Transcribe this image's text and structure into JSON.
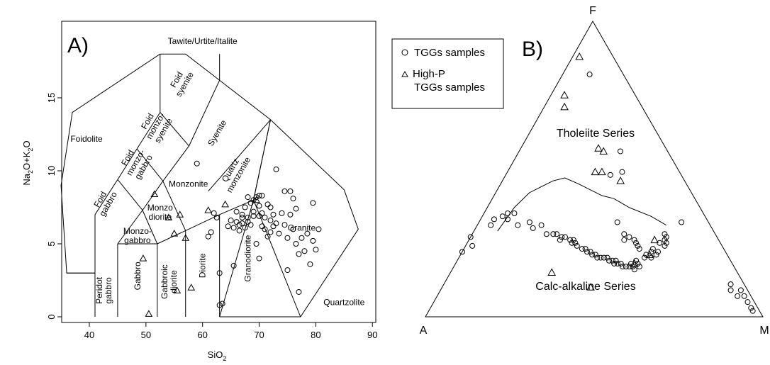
{
  "chart_data": [
    {
      "type": "scatter",
      "panel_label": "A)",
      "xlabel": {
        "base": "SiO",
        "sub": "2"
      },
      "ylabel": {
        "p1": "Na",
        "s1": "2",
        "p2": "O+K",
        "s2": "2",
        "p3": "O"
      },
      "xlim": [
        35,
        90
      ],
      "ylim": [
        0,
        18
      ],
      "x_ticks": [
        40,
        50,
        60,
        70,
        80,
        90
      ],
      "y_ticks": [
        0,
        5,
        10,
        15
      ],
      "grid": false,
      "field_labels": [
        {
          "text": "Tawite/Urtite/Italite",
          "x": 60.0,
          "y": 18.7
        },
        {
          "text": "Foidolite",
          "x": 39.5,
          "y": 12.0
        },
        {
          "text": "Foid|syenite",
          "x": 56.5,
          "y": 16.0,
          "rot": -60
        },
        {
          "text": "Foid|monzo-|syenite",
          "x": 52.0,
          "y": 13.0,
          "rot": -60
        },
        {
          "text": "Foid|monzo-|gabbro",
          "x": 48.5,
          "y": 10.5,
          "rot": -60
        },
        {
          "text": "Foid|gabbro",
          "x": 43.0,
          "y": 7.8,
          "rot": -60
        },
        {
          "text": "Syenite",
          "x": 63.0,
          "y": 12.5,
          "rot": -60
        },
        {
          "text": "Quartz|monzonite",
          "x": 66.0,
          "y": 9.8,
          "rot": -60
        },
        {
          "text": "Monzonite",
          "x": 57.5,
          "y": 8.9
        },
        {
          "text": "Monzo|diorite",
          "x": 52.5,
          "y": 7.0
        },
        {
          "text": "Monzo-|gabbro",
          "x": 48.5,
          "y": 5.4
        },
        {
          "text": "Granite",
          "x": 77.5,
          "y": 5.9
        },
        {
          "text": "Quartzolite",
          "x": 85.0,
          "y": 0.8
        },
        {
          "text": "Peridot|gabbro",
          "x": 43.0,
          "y": 1.8,
          "rot": -90
        },
        {
          "text": "Gabbro",
          "x": 49.0,
          "y": 2.8,
          "rot": -90
        },
        {
          "text": "Gabbroic|diorite",
          "x": 54.5,
          "y": 2.4,
          "rot": -90
        },
        {
          "text": "Diorite",
          "x": 60.5,
          "y": 3.5,
          "rot": -90
        },
        {
          "text": "Granodiorite",
          "x": 68.5,
          "y": 4.0,
          "rot": -90
        }
      ],
      "series": [
        {
          "name": "TGGs samples",
          "marker": "circle",
          "points": [
            [
              59.0,
              10.5
            ],
            [
              61.5,
              5.8
            ],
            [
              61.0,
              5.5
            ],
            [
              62.5,
              6.8
            ],
            [
              63.0,
              3.0
            ],
            [
              63.5,
              0.9
            ],
            [
              63.0,
              0.8
            ],
            [
              62.0,
              7.1
            ],
            [
              64.5,
              6.2
            ],
            [
              65.0,
              6.6
            ],
            [
              65.5,
              6.1
            ],
            [
              65.5,
              3.5
            ],
            [
              66.0,
              7.2
            ],
            [
              66.0,
              6.5
            ],
            [
              66.5,
              6.3
            ],
            [
              66.5,
              5.9
            ],
            [
              67.0,
              7.0
            ],
            [
              67.0,
              6.8
            ],
            [
              67.0,
              6.4
            ],
            [
              67.5,
              7.5
            ],
            [
              67.5,
              6.1
            ],
            [
              68.0,
              8.2
            ],
            [
              68.0,
              6.8
            ],
            [
              68.0,
              6.5
            ],
            [
              68.5,
              7.8
            ],
            [
              68.5,
              6.3
            ],
            [
              69.0,
              8.0
            ],
            [
              69.0,
              7.2
            ],
            [
              69.0,
              6.9
            ],
            [
              69.5,
              8.2
            ],
            [
              69.5,
              5.0
            ],
            [
              70.0,
              8.3
            ],
            [
              70.0,
              7.6
            ],
            [
              70.0,
              6.9
            ],
            [
              70.0,
              4.0
            ],
            [
              70.5,
              8.3
            ],
            [
              70.5,
              7.1
            ],
            [
              70.5,
              6.2
            ],
            [
              71.0,
              6.8
            ],
            [
              71.0,
              6.0
            ],
            [
              71.5,
              7.7
            ],
            [
              71.5,
              5.5
            ],
            [
              72.0,
              7.5
            ],
            [
              72.0,
              6.6
            ],
            [
              72.0,
              5.8
            ],
            [
              72.5,
              7.0
            ],
            [
              72.5,
              6.2
            ],
            [
              73.0,
              10.1
            ],
            [
              73.0,
              6.4
            ],
            [
              73.5,
              5.7
            ],
            [
              74.0,
              7.1
            ],
            [
              74.5,
              8.6
            ],
            [
              74.5,
              6.3
            ],
            [
              75.0,
              5.4
            ],
            [
              75.0,
              3.2
            ],
            [
              75.5,
              8.6
            ],
            [
              75.5,
              7.0
            ],
            [
              76.0,
              8.1
            ],
            [
              76.0,
              6.0
            ],
            [
              76.5,
              7.4
            ],
            [
              76.5,
              5.0
            ],
            [
              77.0,
              4.3
            ],
            [
              77.5,
              5.4
            ],
            [
              78.0,
              4.5
            ],
            [
              78.5,
              5.7
            ],
            [
              79.0,
              3.6
            ],
            [
              79.5,
              7.8
            ],
            [
              79.5,
              5.2
            ],
            [
              80.0,
              4.6
            ],
            [
              80.5,
              6.0
            ],
            [
              77.0,
              1.7
            ]
          ]
        },
        {
          "name": "High-P TGGs samples",
          "marker": "triangle",
          "points": [
            [
              51.5,
              8.4
            ],
            [
              49.5,
              4.0
            ],
            [
              54.0,
              6.8
            ],
            [
              55.0,
              5.7
            ],
            [
              56.0,
              7.0
            ],
            [
              57.0,
              5.4
            ],
            [
              58.0,
              2.0
            ],
            [
              61.0,
              7.3
            ],
            [
              64.0,
              7.7
            ],
            [
              69.5,
              8.0
            ],
            [
              55.5,
              1.8
            ],
            [
              50.5,
              0.2
            ]
          ]
        }
      ]
    },
    {
      "type": "scatter",
      "subtype": "ternary",
      "panel_label": "B)",
      "vertex_labels": {
        "top": "F",
        "left": "A",
        "right": "M"
      },
      "grid": false,
      "region_labels": [
        "Tholeiite Series",
        "Calc-alkaline Series"
      ],
      "legend": {
        "position": "top-left",
        "items": [
          "TGGs samples",
          "High-P TGGs samples"
        ]
      },
      "series": [
        {
          "name": "TGGs samples",
          "marker": "circle",
          "points": [
            [
              0.22,
              0.0
            ],
            [
              0.24,
              0.02
            ],
            [
              0.27,
              0.0
            ],
            [
              0.31,
              0.04
            ],
            [
              0.33,
              0.04
            ],
            [
              0.34,
              0.06
            ],
            [
              0.35,
              0.07
            ],
            [
              0.33,
              0.08
            ],
            [
              0.35,
              0.09
            ],
            [
              0.31,
              0.12
            ],
            [
              0.32,
              0.15
            ],
            [
              0.3,
              0.17
            ],
            [
              0.31,
              0.19
            ],
            [
              0.28,
              0.22
            ],
            [
              0.28,
              0.24
            ],
            [
              0.28,
              0.25
            ],
            [
              0.26,
              0.27
            ],
            [
              0.27,
              0.27
            ],
            [
              0.27,
              0.28
            ],
            [
              0.26,
              0.3
            ],
            [
              0.25,
              0.31
            ],
            [
              0.25,
              0.32
            ],
            [
              0.26,
              0.31
            ],
            [
              0.24,
              0.33
            ],
            [
              0.23,
              0.35
            ],
            [
              0.23,
              0.36
            ],
            [
              0.22,
              0.37
            ],
            [
              0.22,
              0.38
            ],
            [
              0.21,
              0.39
            ],
            [
              0.21,
              0.4
            ],
            [
              0.2,
              0.41
            ],
            [
              0.2,
              0.42
            ],
            [
              0.2,
              0.43
            ],
            [
              0.2,
              0.44
            ],
            [
              0.19,
              0.45
            ],
            [
              0.19,
              0.46
            ],
            [
              0.19,
              0.47
            ],
            [
              0.18,
              0.47
            ],
            [
              0.18,
              0.48
            ],
            [
              0.18,
              0.49
            ],
            [
              0.17,
              0.5
            ],
            [
              0.17,
              0.51
            ],
            [
              0.17,
              0.52
            ],
            [
              0.18,
              0.52
            ],
            [
              0.17,
              0.53
            ],
            [
              0.16,
              0.54
            ],
            [
              0.17,
              0.55
            ],
            [
              0.18,
              0.54
            ],
            [
              0.19,
              0.53
            ],
            [
              0.2,
              0.55
            ],
            [
              0.21,
              0.55
            ],
            [
              0.2,
              0.57
            ],
            [
              0.22,
              0.56
            ],
            [
              0.21,
              0.58
            ],
            [
              0.22,
              0.58
            ],
            [
              0.23,
              0.56
            ],
            [
              0.25,
              0.59
            ],
            [
              0.26,
              0.58
            ],
            [
              0.28,
              0.57
            ],
            [
              0.24,
              0.59
            ],
            [
              0.27,
              0.58
            ],
            [
              0.25,
              0.57
            ],
            [
              0.02,
              0.96
            ],
            [
              0.03,
              0.95
            ],
            [
              0.05,
              0.93
            ],
            [
              0.07,
              0.91
            ],
            [
              0.07,
              0.89
            ],
            [
              0.09,
              0.89
            ],
            [
              0.09,
              0.86
            ],
            [
              0.11,
              0.85
            ],
            [
              0.82,
              0.08
            ],
            [
              0.56,
              0.3
            ],
            [
              0.49,
              0.34
            ],
            [
              0.48,
              0.31
            ],
            [
              0.32,
              0.6
            ],
            [
              0.32,
              0.41
            ],
            [
              0.26,
              0.49
            ],
            [
              0.28,
              0.45
            ],
            [
              0.26,
              0.46
            ],
            [
              0.24,
              0.51
            ],
            [
              0.27,
              0.47
            ],
            [
              0.23,
              0.52
            ],
            [
              0.25,
              0.5
            ]
          ]
        },
        {
          "name": "High-P TGGs samples",
          "marker": "triangle",
          "points": [
            [
              0.88,
              0.02
            ],
            [
              0.75,
              0.04
            ],
            [
              0.71,
              0.06
            ],
            [
              0.56,
              0.25
            ],
            [
              0.57,
              0.23
            ],
            [
              0.49,
              0.28
            ],
            [
              0.49,
              0.26
            ],
            [
              0.46,
              0.35
            ],
            [
              0.26,
              0.55
            ],
            [
              0.18,
              0.53
            ],
            [
              0.21,
              0.56
            ],
            [
              0.15,
              0.3
            ],
            [
              0.1,
              0.44
            ]
          ]
        }
      ],
      "boundary_curve": [
        [
          0.29,
          0.07
        ],
        [
          0.37,
          0.08
        ],
        [
          0.42,
          0.1
        ],
        [
          0.46,
          0.15
        ],
        [
          0.47,
          0.18
        ],
        [
          0.45,
          0.23
        ],
        [
          0.41,
          0.32
        ],
        [
          0.4,
          0.36
        ],
        [
          0.37,
          0.42
        ],
        [
          0.34,
          0.5
        ],
        [
          0.31,
          0.56
        ]
      ]
    }
  ]
}
